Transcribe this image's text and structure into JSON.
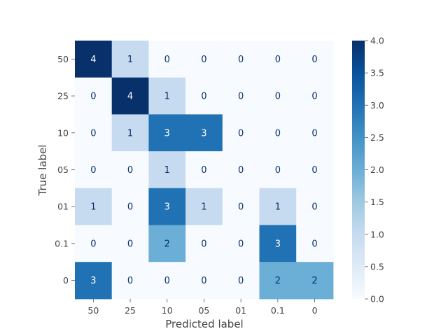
{
  "chart_data": {
    "type": "heatmap",
    "title": "",
    "xlabel": "Predicted label",
    "ylabel": "True label",
    "x_categories": [
      "50",
      "25",
      "10",
      "05",
      "01",
      "0.1",
      "0"
    ],
    "y_categories": [
      "50",
      "25",
      "10",
      "05",
      "01",
      "0.1",
      "0"
    ],
    "matrix": [
      [
        4,
        1,
        0,
        0,
        0,
        0,
        0
      ],
      [
        0,
        4,
        1,
        0,
        0,
        0,
        0
      ],
      [
        0,
        1,
        3,
        3,
        0,
        0,
        0
      ],
      [
        0,
        0,
        1,
        0,
        0,
        0,
        0
      ],
      [
        1,
        0,
        3,
        1,
        0,
        1,
        0
      ],
      [
        0,
        0,
        2,
        0,
        0,
        3,
        0
      ],
      [
        3,
        0,
        0,
        0,
        0,
        2,
        2
      ]
    ],
    "colormap": "Blues",
    "color_range": [
      0,
      4
    ],
    "colorbar_ticks": [
      "0.0",
      "0.5",
      "1.0",
      "1.5",
      "2.0",
      "2.5",
      "3.0",
      "3.5",
      "4.0"
    ],
    "grid": false
  }
}
